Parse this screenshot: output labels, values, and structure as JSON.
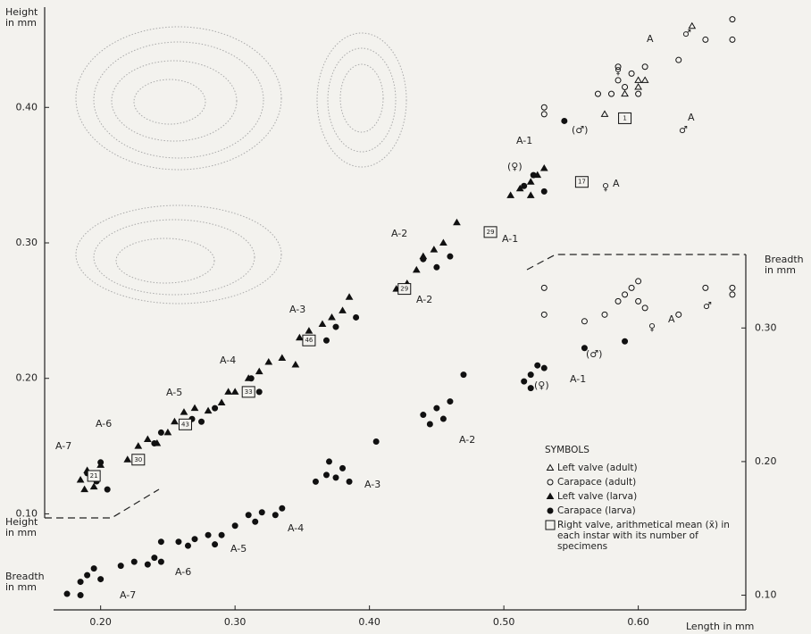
{
  "chart_data": {
    "type": "scatter",
    "xlim": [
      0.165,
      0.68
    ],
    "ylim": [
      0.097,
      0.474
    ],
    "y2lim": [
      0.089,
      0.355
    ],
    "xticks": [
      {
        "value": 0.2,
        "label": "0.20"
      },
      {
        "value": 0.3,
        "label": "0.30"
      },
      {
        "value": 0.4,
        "label": "0.40"
      },
      {
        "value": 0.5,
        "label": "0.50"
      },
      {
        "value": 0.6,
        "label": "0.60"
      }
    ],
    "yticks": [
      {
        "value": 0.1,
        "label": "0.10"
      },
      {
        "value": 0.2,
        "label": "0.20"
      },
      {
        "value": 0.3,
        "label": "0.30"
      },
      {
        "value": 0.4,
        "label": "0.40"
      }
    ],
    "y2ticks": [
      {
        "value": 0.1,
        "label": "0.10"
      },
      {
        "value": 0.2,
        "label": "0.20"
      },
      {
        "value": 0.3,
        "label": "0.30"
      }
    ],
    "labels": {
      "height_top": [
        "Height",
        "in mm"
      ],
      "height_bottom": [
        "Height",
        "in mm"
      ],
      "breadth_left": [
        "Breadth",
        "in mm"
      ],
      "breadth_right": [
        "Breadth",
        "in mm"
      ],
      "length": "Length in mm"
    },
    "legend_title": "SYMBOLS",
    "series": [
      {
        "name": "Left valve (adult)",
        "marker": "triangle-open",
        "color": "#111",
        "x": [
          0.575,
          0.59,
          0.6,
          0.605,
          0.64,
          0.6
        ],
        "y": [
          0.395,
          0.41,
          0.415,
          0.42,
          0.46,
          0.42
        ]
      },
      {
        "name": "Carapace (adult)",
        "marker": "circle-open",
        "color": "#111",
        "x": [
          0.53,
          0.53,
          0.57,
          0.58,
          0.585,
          0.59,
          0.595,
          0.6,
          0.605,
          0.585,
          0.63,
          0.65,
          0.67,
          0.67
        ],
        "y": [
          0.4,
          0.395,
          0.41,
          0.41,
          0.42,
          0.415,
          0.425,
          0.41,
          0.43,
          0.43,
          0.435,
          0.45,
          0.465,
          0.45
        ]
      },
      {
        "name": "Left valve (larva)",
        "marker": "triangle",
        "color": "#111",
        "x": [
          0.185,
          0.19,
          0.195,
          0.2,
          0.188,
          0.22,
          0.228,
          0.235,
          0.242,
          0.25,
          0.255,
          0.262,
          0.27,
          0.28,
          0.29,
          0.295,
          0.3,
          0.31,
          0.318,
          0.325,
          0.335,
          0.345,
          0.348,
          0.355,
          0.365,
          0.372,
          0.38,
          0.385,
          0.42,
          0.428,
          0.435,
          0.44,
          0.448,
          0.455,
          0.465,
          0.505,
          0.512,
          0.52,
          0.525,
          0.53,
          0.52
        ],
        "y": [
          0.125,
          0.132,
          0.12,
          0.136,
          0.118,
          0.14,
          0.15,
          0.155,
          0.152,
          0.16,
          0.168,
          0.175,
          0.178,
          0.176,
          0.182,
          0.19,
          0.19,
          0.2,
          0.205,
          0.212,
          0.215,
          0.21,
          0.23,
          0.235,
          0.24,
          0.245,
          0.25,
          0.26,
          0.266,
          0.27,
          0.28,
          0.29,
          0.295,
          0.3,
          0.315,
          0.335,
          0.34,
          0.345,
          0.35,
          0.355,
          0.335
        ]
      },
      {
        "name": "Carapace (larva)",
        "marker": "circle",
        "color": "#111",
        "x": [
          0.19,
          0.197,
          0.2,
          0.205,
          0.24,
          0.245,
          0.268,
          0.275,
          0.285,
          0.312,
          0.318,
          0.368,
          0.375,
          0.39,
          0.44,
          0.45,
          0.46,
          0.515,
          0.522,
          0.53,
          0.545
        ],
        "y": [
          0.13,
          0.124,
          0.138,
          0.118,
          0.152,
          0.16,
          0.17,
          0.168,
          0.178,
          0.2,
          0.19,
          0.228,
          0.238,
          0.245,
          0.288,
          0.282,
          0.29,
          0.342,
          0.35,
          0.338,
          0.39
        ]
      },
      {
        "name": "Right valve, arithmetical mean (x̄) in each instar with its number of specimens",
        "marker": "square-label",
        "color": "#111",
        "x": [
          0.195,
          0.228,
          0.263,
          0.31,
          0.355,
          0.426,
          0.49,
          0.558,
          0.59
        ],
        "y": [
          0.128,
          0.14,
          0.166,
          0.19,
          0.228,
          0.266,
          0.308,
          0.345,
          0.392
        ],
        "counts": [
          21,
          30,
          43,
          33,
          46,
          29,
          29,
          17,
          1
        ]
      },
      {
        "marker": "circle",
        "color": "#111",
        "axis": "y2",
        "x": [
          0.185,
          0.19,
          0.195,
          0.2,
          0.175,
          0.185,
          0.235,
          0.24,
          0.245,
          0.215,
          0.225,
          0.245,
          0.265,
          0.27,
          0.28,
          0.29,
          0.285,
          0.258,
          0.3,
          0.31,
          0.315,
          0.32,
          0.33,
          0.335,
          0.36,
          0.368,
          0.375,
          0.38,
          0.385,
          0.37,
          0.44,
          0.445,
          0.45,
          0.455,
          0.46,
          0.47,
          0.405,
          0.515,
          0.52,
          0.525,
          0.52,
          0.53,
          0.56,
          0.59
        ],
        "y": [
          0.11,
          0.115,
          0.12,
          0.112,
          0.101,
          0.1,
          0.123,
          0.128,
          0.125,
          0.122,
          0.125,
          0.14,
          0.137,
          0.142,
          0.145,
          0.145,
          0.138,
          0.14,
          0.152,
          0.16,
          0.155,
          0.162,
          0.16,
          0.165,
          0.185,
          0.19,
          0.188,
          0.195,
          0.185,
          0.2,
          0.235,
          0.228,
          0.24,
          0.232,
          0.245,
          0.265,
          0.215,
          0.26,
          0.265,
          0.272,
          0.255,
          0.27,
          0.285,
          0.29
        ]
      },
      {
        "marker": "circle-open",
        "color": "#111",
        "axis": "y2",
        "x": [
          0.53,
          0.53,
          0.56,
          0.575,
          0.585,
          0.59,
          0.595,
          0.6,
          0.605,
          0.6,
          0.63,
          0.65,
          0.67,
          0.67
        ],
        "y": [
          0.33,
          0.31,
          0.305,
          0.31,
          0.32,
          0.325,
          0.33,
          0.32,
          0.315,
          0.335,
          0.31,
          0.33,
          0.33,
          0.325
        ]
      }
    ],
    "annotations": [
      "A-7",
      "A-6",
      "A-5",
      "A-4",
      "A-3",
      "A-2",
      "A-1",
      "A",
      "A",
      "A-2",
      "A-1",
      "A",
      "A-1",
      "A-2",
      "A-3",
      "A-4",
      "A-5",
      "A-6",
      "A-7",
      "A",
      "♂",
      "(♂)",
      "(♀)",
      "♀",
      "♂",
      "♀",
      "(♂)",
      "(♀)",
      "♀",
      "♂"
    ]
  }
}
